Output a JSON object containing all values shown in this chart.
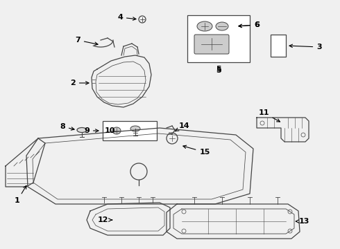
{
  "bg_color": "#f0f0f0",
  "line_color": "#444444",
  "fig_w": 4.9,
  "fig_h": 3.6,
  "dpi": 100
}
